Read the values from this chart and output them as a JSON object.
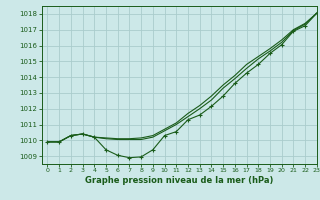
{
  "title": "Graphe pression niveau de la mer (hPa)",
  "background_color": "#cce8e8",
  "grid_color": "#aacccc",
  "line_color": "#1a5c1a",
  "xlim": [
    -0.5,
    23
  ],
  "ylim": [
    1008.5,
    1018.5
  ],
  "yticks": [
    1009,
    1010,
    1011,
    1012,
    1013,
    1014,
    1015,
    1016,
    1017,
    1018
  ],
  "xticks": [
    0,
    1,
    2,
    3,
    4,
    5,
    6,
    7,
    8,
    9,
    10,
    11,
    12,
    13,
    14,
    15,
    16,
    17,
    18,
    19,
    20,
    21,
    22,
    23
  ],
  "series1": {
    "x": [
      0,
      1,
      2,
      3,
      4,
      5,
      6,
      7,
      8,
      9,
      10,
      11,
      12,
      13,
      14,
      15,
      16,
      17,
      18,
      19,
      20,
      21,
      22,
      23
    ],
    "y": [
      1009.9,
      1009.9,
      1010.3,
      1010.4,
      1010.2,
      1009.4,
      1009.05,
      1008.9,
      1008.95,
      1009.4,
      1010.3,
      1010.55,
      1011.3,
      1011.6,
      1012.15,
      1012.8,
      1013.6,
      1014.25,
      1014.8,
      1015.5,
      1016.05,
      1016.9,
      1017.25,
      1018.05
    ]
  },
  "series2": {
    "x": [
      0,
      1,
      2,
      3,
      4,
      5,
      6,
      7,
      8,
      9,
      10,
      11,
      12,
      13,
      14,
      15,
      16,
      17,
      18,
      19,
      20,
      21,
      22,
      23
    ],
    "y": [
      1009.9,
      1009.9,
      1010.3,
      1010.4,
      1010.2,
      1010.15,
      1010.1,
      1010.1,
      1010.15,
      1010.3,
      1010.7,
      1011.1,
      1011.7,
      1012.2,
      1012.8,
      1013.5,
      1014.1,
      1014.8,
      1015.3,
      1015.8,
      1016.35,
      1017.0,
      1017.4,
      1018.05
    ]
  },
  "series3": {
    "x": [
      0,
      1,
      2,
      3,
      4,
      5,
      6,
      7,
      8,
      9,
      10,
      11,
      12,
      13,
      14,
      15,
      16,
      17,
      18,
      19,
      20,
      21,
      22,
      23
    ],
    "y": [
      1009.9,
      1009.9,
      1010.3,
      1010.4,
      1010.2,
      1010.1,
      1010.05,
      1010.05,
      1010.05,
      1010.2,
      1010.6,
      1011.0,
      1011.5,
      1012.0,
      1012.55,
      1013.3,
      1013.9,
      1014.55,
      1015.15,
      1015.65,
      1016.2,
      1016.95,
      1017.35,
      1018.05
    ]
  }
}
